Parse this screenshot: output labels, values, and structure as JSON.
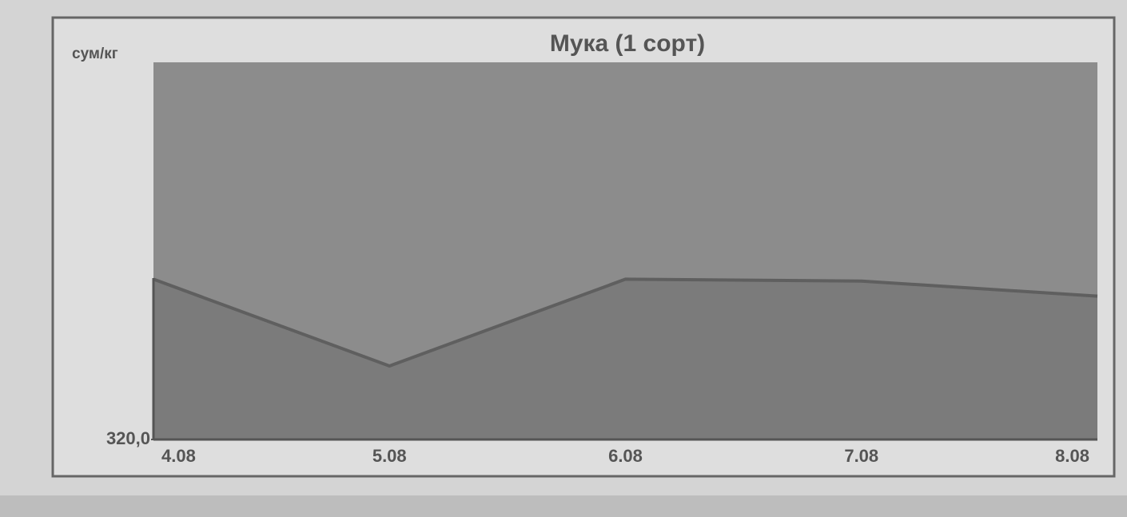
{
  "chart_data": {
    "type": "area",
    "title": "Мука (1 сорт)",
    "y_label": "сум/кг",
    "categories": [
      "4.08",
      "5.08",
      "6.08",
      "7.08",
      "8.08"
    ],
    "series": [
      {
        "color": "#7b7b7b",
        "values": [
          328.5,
          323.9,
          328.5,
          328.4,
          327.6
        ]
      }
    ],
    "ylim": [
      320,
      340
    ],
    "yticks": [
      {
        "value": 320,
        "label": "320,0"
      }
    ],
    "grid": false
  }
}
